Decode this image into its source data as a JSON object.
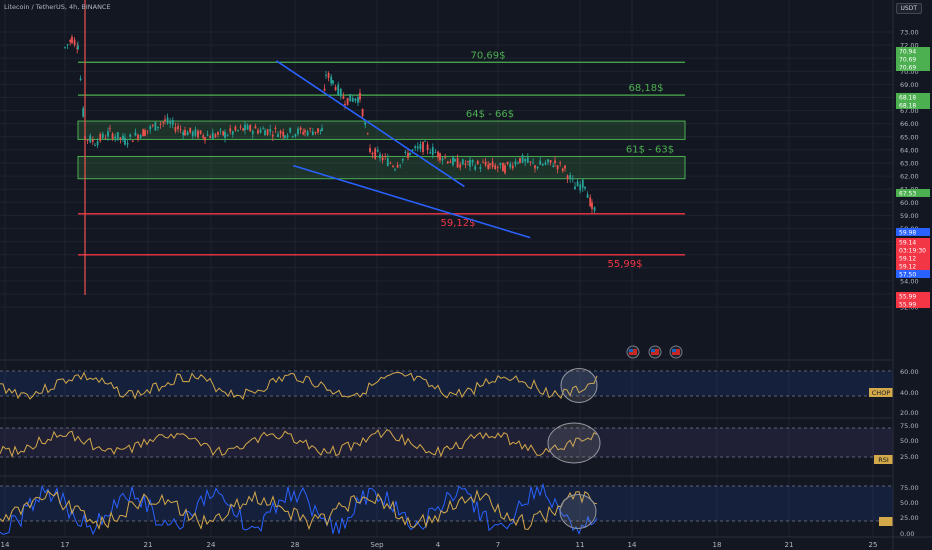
{
  "header": {
    "title": "Litecoin / TetherUS, 4h, BINANCE",
    "currency": "USDT"
  },
  "price_axis": {
    "ticks": [
      73.0,
      72.0,
      71.0,
      70.0,
      69.0,
      68.0,
      67.0,
      66.0,
      65.0,
      64.0,
      63.0,
      62.0,
      61.0,
      60.0,
      59.0,
      58.0,
      57.0,
      56.0,
      55.0,
      54.0,
      53.0,
      52.0
    ]
  },
  "time_axis": {
    "labels": [
      "14",
      "17",
      "21",
      "24",
      "28",
      "Sep",
      "4",
      "7",
      "11",
      "14",
      "18",
      "21",
      "25"
    ]
  },
  "levels": [
    {
      "label": "70,69$",
      "price": 70.69,
      "color": "#4caf50"
    },
    {
      "label": "68,18$",
      "price": 68.18,
      "color": "#4caf50"
    },
    {
      "label": "59,12$",
      "price": 59.12,
      "color": "#f23645"
    },
    {
      "label": "55,99$",
      "price": 55.99,
      "color": "#f23645"
    }
  ],
  "zones": [
    {
      "label": "64$ - 66$",
      "low": 64.8,
      "high": 66.2
    },
    {
      "label": "61$ - 63$",
      "low": 61.8,
      "high": 63.5
    }
  ],
  "right_tags": [
    {
      "text": "70.94",
      "color": "#4caf50"
    },
    {
      "text": "70.69",
      "color": "#4caf50"
    },
    {
      "text": "70.69",
      "color": "#4caf50"
    },
    {
      "text": "68.18",
      "color": "#4caf50"
    },
    {
      "text": "68.18",
      "color": "#4caf50"
    },
    {
      "text": "67.53",
      "color": "#4caf50"
    },
    {
      "text": "59.98",
      "color": "#2962ff"
    },
    {
      "text": "59.14",
      "color": "#f23645"
    },
    {
      "text": "03:19:30",
      "color": "#f23645"
    },
    {
      "text": "59.12",
      "color": "#f23645"
    },
    {
      "text": "59.12",
      "color": "#f23645"
    },
    {
      "text": "57.50",
      "color": "#2962ff"
    },
    {
      "text": "55.99",
      "color": "#f23645"
    },
    {
      "text": "55.99",
      "color": "#f23645"
    }
  ],
  "indicators": [
    {
      "name": "CHOP",
      "ticks": [
        "60.00",
        "40.00",
        "20.00"
      ]
    },
    {
      "name": "RSI",
      "ticks": [
        "75.00",
        "50.00",
        "25.00"
      ]
    },
    {
      "name": "",
      "ticks": [
        "75.00",
        "50.00",
        "25.00",
        "0.00"
      ]
    }
  ],
  "chart_data": {
    "type": "line",
    "title": "Litecoin / TetherUS, 4h, BINANCE",
    "xlabel": "",
    "ylabel": "",
    "ylim": [
      51.5,
      73.5
    ],
    "x": [
      "14",
      "17",
      "21",
      "24",
      "28",
      "Sep",
      "4",
      "7",
      "11"
    ],
    "series": [
      {
        "values": [
          71.0,
          65.0,
          65.5,
          65.0,
          65.5,
          69.5,
          64.0,
          63.0,
          59.1
        ]
      }
    ],
    "trendlines": [
      {
        "from": [
          "28",
          70.8
        ],
        "to": [
          "13",
          61.2
        ]
      },
      {
        "from": [
          "29",
          62.8
        ],
        "to": [
          "16",
          57.3
        ]
      }
    ],
    "grid": true
  }
}
